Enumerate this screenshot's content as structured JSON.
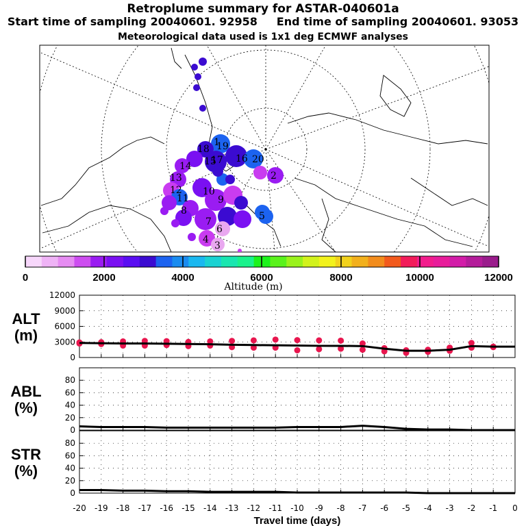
{
  "header": {
    "title": "Retroplume summary for ASTAR-040601a",
    "start_label": "Start time of sampling 20040601. 92958",
    "end_label": "End time of sampling 20040601. 93053",
    "subtitle": "Meteorological data used is 1x1 deg ECMWF analyses"
  },
  "map": {
    "colors": {
      "light": "#e9a8f0",
      "mid": "#9a1cf2",
      "dark": "#3b0bd1",
      "blue": "#1c63f0",
      "magenta": "#c93cf0"
    },
    "day_markers": [
      "20",
      "19",
      "18",
      "17",
      "16",
      "15",
      "14",
      "13",
      "12",
      "11",
      "10",
      "9",
      "8",
      "7",
      "6",
      "5",
      "4",
      "3",
      "2",
      "1"
    ]
  },
  "colorbar": {
    "ticks": [
      "0",
      "2000",
      "4000",
      "6000",
      "8000",
      "10000",
      "12000"
    ],
    "label": "Altitude (m)",
    "colors": [
      "#f7d7fb",
      "#efb3f6",
      "#e68cf2",
      "#cd4df0",
      "#9a1cf2",
      "#7a10f2",
      "#5a0ef2",
      "#3b0bd1",
      "#1c63f0",
      "#1a8cf0",
      "#1ab8f0",
      "#1ad2d2",
      "#1ae6b0",
      "#1af28c",
      "#1cf21c",
      "#5af21c",
      "#9af21c",
      "#d2f21c",
      "#f2f21c",
      "#f2d21c",
      "#f2b01c",
      "#f28c1c",
      "#f25a1c",
      "#f21c5a",
      "#f21c8c",
      "#e81c9a",
      "#d21ca8",
      "#b41c9a",
      "#9a1c8c"
    ]
  },
  "chart_data": [
    {
      "type": "line",
      "panel": "ALT",
      "ylabel_line1": "ALT",
      "ylabel_line2": "(m)",
      "ylim": [
        0,
        12000
      ],
      "yticks": [
        "0",
        "3000",
        "6000",
        "9000",
        "12000"
      ],
      "x": [
        -20,
        -19,
        -18,
        -17,
        -16,
        -15,
        -14,
        -13,
        -12,
        -11,
        -10,
        -9,
        -8,
        -7,
        -6,
        -5,
        -4,
        -3,
        -2,
        -1,
        0
      ],
      "mean": [
        2800,
        2750,
        2700,
        2700,
        2650,
        2600,
        2550,
        2450,
        2400,
        2350,
        2300,
        2250,
        2250,
        2200,
        1700,
        1300,
        1300,
        1500,
        2200,
        2100,
        2100
      ],
      "scatter_series": [
        {
          "name": "upper",
          "x": [
            -20,
            -19,
            -18,
            -17,
            -16,
            -15,
            -14,
            -13,
            -12,
            -11,
            -10,
            -9,
            -8,
            -7,
            -6,
            -5,
            -4,
            -3,
            -2,
            -1
          ],
          "values": [
            2900,
            2950,
            3100,
            3200,
            3150,
            3000,
            3100,
            3200,
            3300,
            3450,
            3350,
            3300,
            3250,
            2700,
            1800,
            1400,
            1500,
            1900,
            2800,
            2100
          ]
        },
        {
          "name": "lower",
          "x": [
            -20,
            -19,
            -18,
            -17,
            -16,
            -15,
            -14,
            -13,
            -12,
            -11,
            -10,
            -9,
            -8,
            -7,
            -6,
            -5,
            -4,
            -3,
            -2,
            -1
          ],
          "values": [
            2700,
            2600,
            2300,
            2300,
            2400,
            2200,
            2300,
            2000,
            1900,
            1900,
            1400,
            1600,
            1700,
            1500,
            1200,
            900,
            1100,
            1300,
            1900,
            2000
          ]
        }
      ]
    },
    {
      "type": "line",
      "panel": "ABL",
      "ylabel_line1": "ABL",
      "ylabel_line2": "(%)",
      "ylim": [
        0,
        100
      ],
      "yticks": [
        "0",
        "20",
        "40",
        "60",
        "80"
      ],
      "x": [
        -20,
        -19,
        -18,
        -17,
        -16,
        -15,
        -14,
        -13,
        -12,
        -11,
        -10,
        -9,
        -8,
        -7,
        -6,
        -5,
        -4,
        -3,
        -2,
        -1,
        0
      ],
      "values": [
        6,
        5,
        5,
        5,
        4,
        4,
        4,
        4,
        4,
        4,
        5,
        5,
        5,
        7,
        5,
        2,
        1,
        1,
        0,
        0,
        0
      ]
    },
    {
      "type": "line",
      "panel": "STR",
      "ylabel_line1": "STR",
      "ylabel_line2": "(%)",
      "ylim": [
        0,
        100
      ],
      "yticks": [
        "0",
        "20",
        "40",
        "60",
        "80"
      ],
      "x": [
        -20,
        -19,
        -18,
        -17,
        -16,
        -15,
        -14,
        -13,
        -12,
        -11,
        -10,
        -9,
        -8,
        -7,
        -6,
        -5,
        -4,
        -3,
        -2,
        -1,
        0
      ],
      "values": [
        5,
        5,
        4,
        4,
        3,
        3,
        2,
        2,
        2,
        2,
        1,
        1,
        1,
        1,
        1,
        1,
        0,
        0,
        0,
        0,
        0
      ],
      "xticks": [
        "-20",
        "-19",
        "-18",
        "-17",
        "-16",
        "-15",
        "-14",
        "-13",
        "-12",
        "-11",
        "-10",
        "-9",
        "-8",
        "-7",
        "-6",
        "-5",
        "-4",
        "-3",
        "-2",
        "-1",
        "0"
      ],
      "xlabel": "Travel time (days)"
    }
  ]
}
